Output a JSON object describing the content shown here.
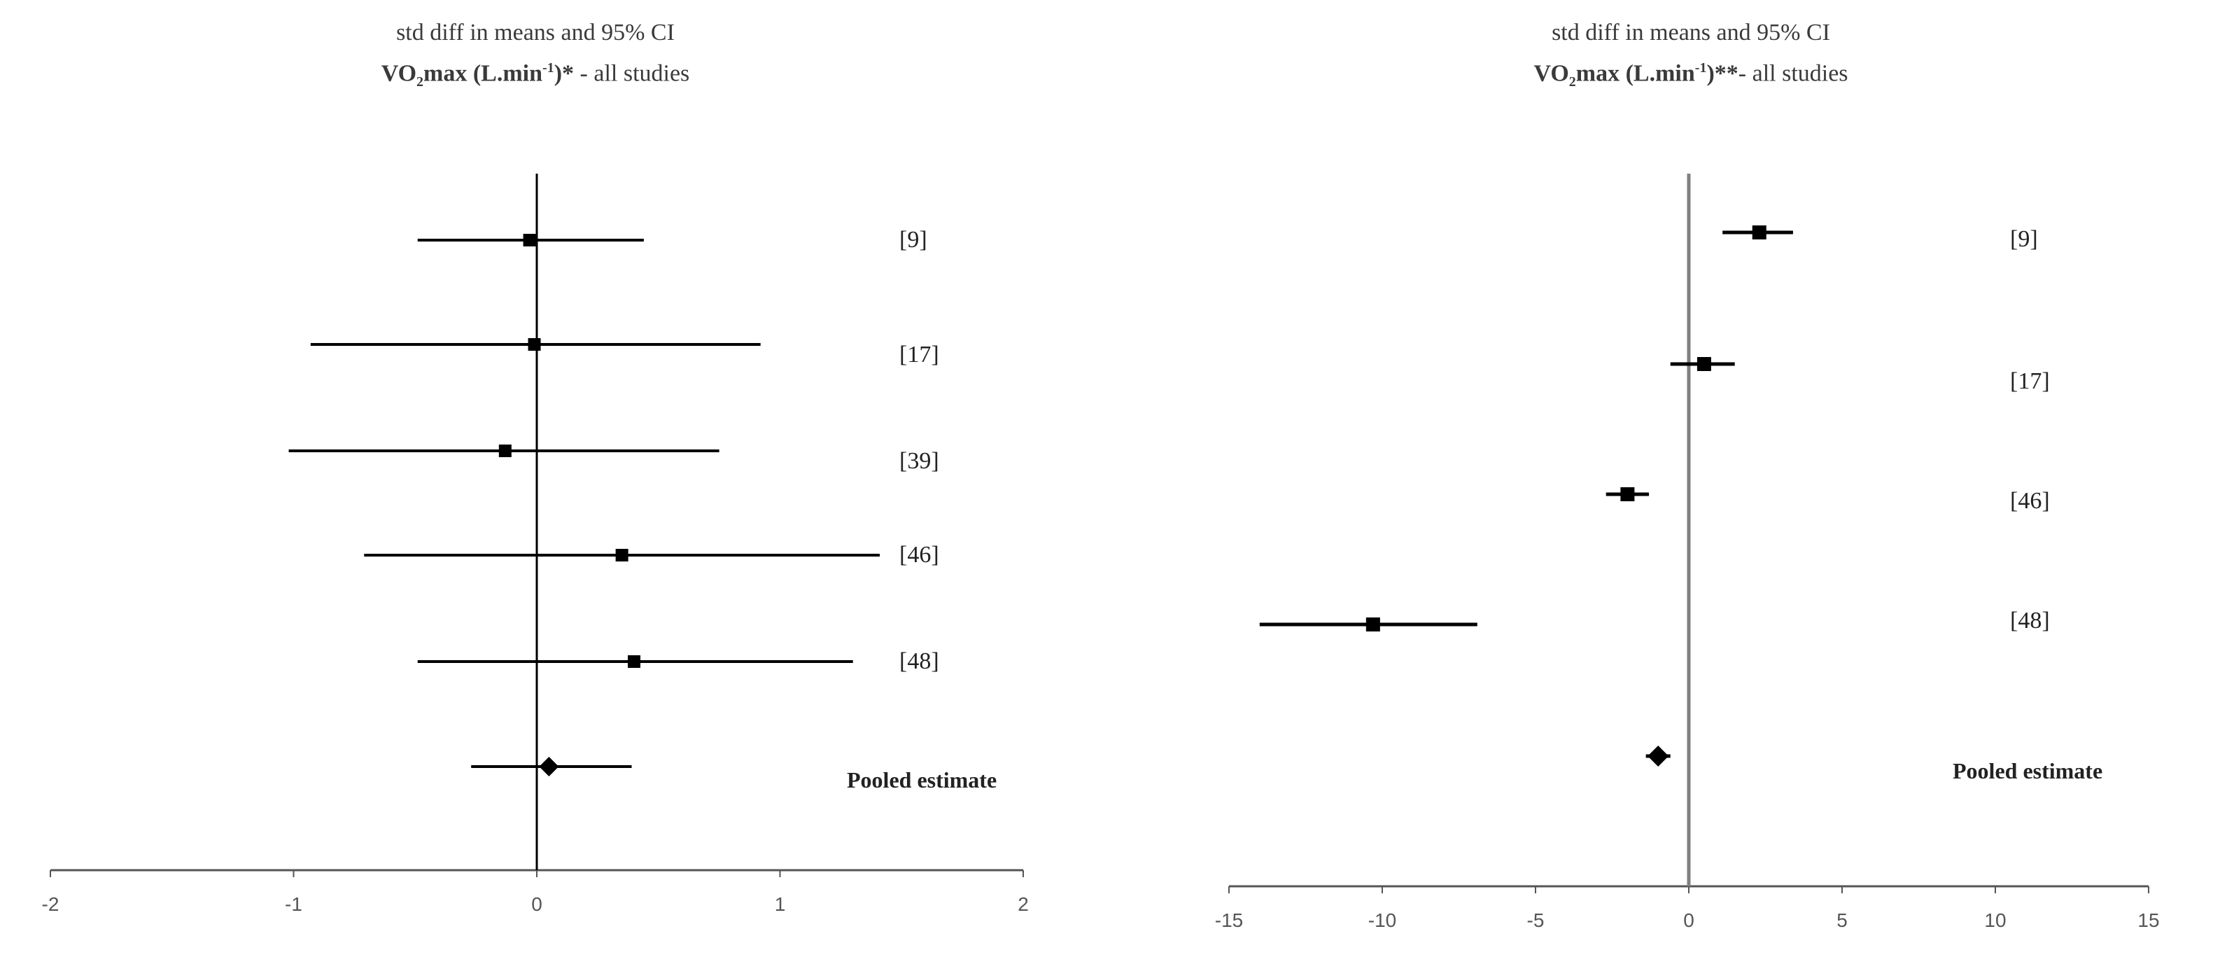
{
  "colors": {
    "line": "#000000",
    "axis": "#555555",
    "zero_line_right": "#808080"
  },
  "chart_data": [
    {
      "type": "forest",
      "title": "std diff in means and 95% CI",
      "subtitle": {
        "main": "VO",
        "sub": "2",
        "mid": "max  (L.min",
        "sup": "-1",
        "end": ")* ",
        "rest": " - all studies"
      },
      "xlim": [
        -2,
        2
      ],
      "xticks": [
        -2,
        -1,
        0,
        1,
        2
      ],
      "grid": false,
      "studies": [
        {
          "label": "[9]",
          "estimate": -0.03,
          "ci": [
            -0.49,
            0.44
          ]
        },
        {
          "label": "[17]",
          "estimate": -0.01,
          "ci": [
            -0.93,
            0.92
          ]
        },
        {
          "label": "[39]",
          "estimate": -0.13,
          "ci": [
            -1.02,
            0.75
          ]
        },
        {
          "label": "[46]",
          "estimate": 0.35,
          "ci": [
            -0.71,
            1.41
          ]
        },
        {
          "label": "[48]",
          "estimate": 0.4,
          "ci": [
            -0.49,
            1.3
          ]
        }
      ],
      "pooled": {
        "label": "Pooled estimate",
        "estimate": 0.05,
        "ci": [
          -0.27,
          0.39
        ]
      }
    },
    {
      "type": "forest",
      "title": "std diff in means and 95% CI",
      "subtitle": {
        "main": "VO",
        "sub": "2",
        "mid": "max  (L.min",
        "sup": "-1",
        "end": ")**",
        "rest": "- all studies"
      },
      "xlim": [
        -15,
        15
      ],
      "xticks": [
        -15,
        -10,
        -5,
        0,
        5,
        10,
        15
      ],
      "grid": false,
      "studies": [
        {
          "label": "[9]",
          "estimate": 2.3,
          "ci": [
            1.1,
            3.4
          ]
        },
        {
          "label": "[17]",
          "estimate": 0.5,
          "ci": [
            -0.6,
            1.5
          ]
        },
        {
          "label": "[46]",
          "estimate": -2.0,
          "ci": [
            -2.7,
            -1.3
          ]
        },
        {
          "label": "[48]",
          "estimate": -10.3,
          "ci": [
            -14.0,
            -6.9
          ]
        }
      ],
      "pooled": {
        "label": "Pooled estimate",
        "estimate": -1.0,
        "ci": [
          -1.4,
          -0.6
        ]
      }
    }
  ]
}
